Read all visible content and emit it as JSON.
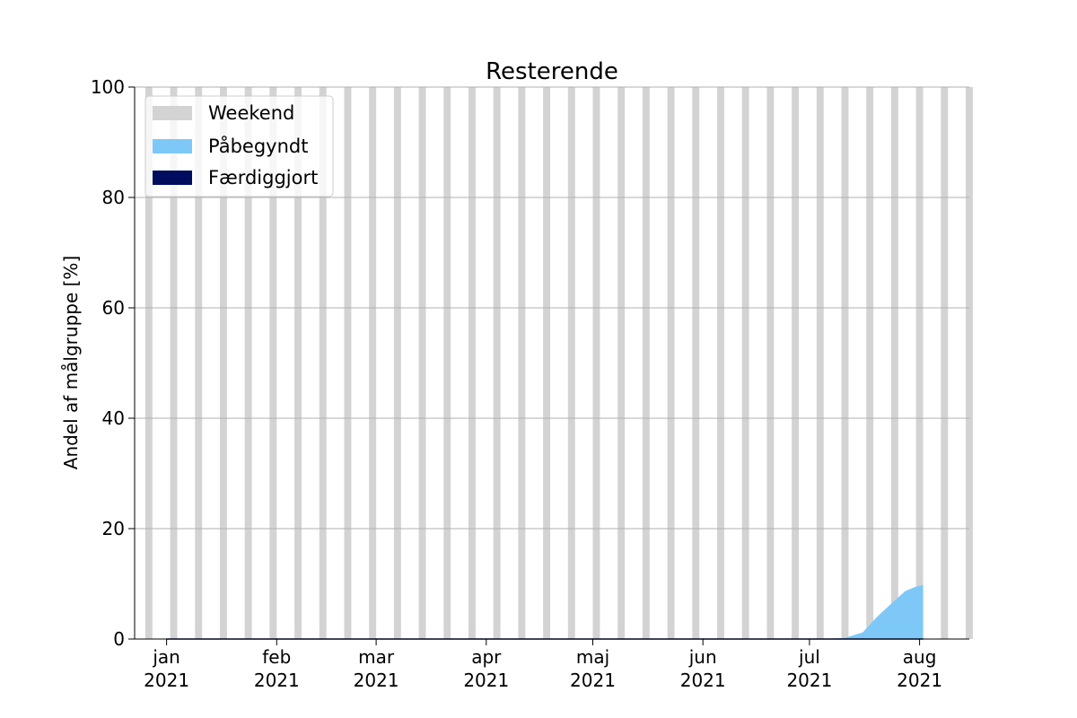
{
  "chart_data": {
    "type": "area",
    "title": "Resterende",
    "xlabel": "",
    "ylabel": "Andel af målgruppe [%]",
    "ylim": [
      0,
      100
    ],
    "yticks": [
      0,
      20,
      40,
      60,
      80,
      100
    ],
    "grid": "horizontal",
    "legend_placement": "top-left",
    "x_range": [
      "2020-12-23",
      "2021-08-15"
    ],
    "x_ticks": [
      {
        "date": "2021-01-01",
        "label_month": "jan",
        "label_year": "2021"
      },
      {
        "date": "2021-02-01",
        "label_month": "feb",
        "label_year": "2021"
      },
      {
        "date": "2021-03-01",
        "label_month": "mar",
        "label_year": "2021"
      },
      {
        "date": "2021-04-01",
        "label_month": "apr",
        "label_year": "2021"
      },
      {
        "date": "2021-05-01",
        "label_month": "maj",
        "label_year": "2021"
      },
      {
        "date": "2021-06-01",
        "label_month": "jun",
        "label_year": "2021"
      },
      {
        "date": "2021-07-01",
        "label_month": "jul",
        "label_year": "2021"
      },
      {
        "date": "2021-08-01",
        "label_month": "aug",
        "label_year": "2021"
      }
    ],
    "weekend_start": "2020-12-26",
    "weekend_end": "2021-08-14",
    "series": [
      {
        "name": "Weekend",
        "kind": "weekend-bars",
        "color": "#d3d3d3"
      },
      {
        "name": "Påbegyndt",
        "color": "#7ec8f7",
        "points": [
          [
            "2021-01-01",
            0
          ],
          [
            "2021-07-05",
            0
          ],
          [
            "2021-07-11",
            0.2
          ],
          [
            "2021-07-16",
            1.2
          ],
          [
            "2021-07-20",
            4.0
          ],
          [
            "2021-07-25",
            7.0
          ],
          [
            "2021-07-28",
            8.7
          ],
          [
            "2021-07-31",
            9.5
          ],
          [
            "2021-08-02",
            9.8
          ]
        ]
      },
      {
        "name": "Færdiggjort",
        "color": "#000c5e",
        "points": [
          [
            "2021-01-01",
            0
          ],
          [
            "2021-08-02",
            0
          ]
        ]
      }
    ]
  }
}
